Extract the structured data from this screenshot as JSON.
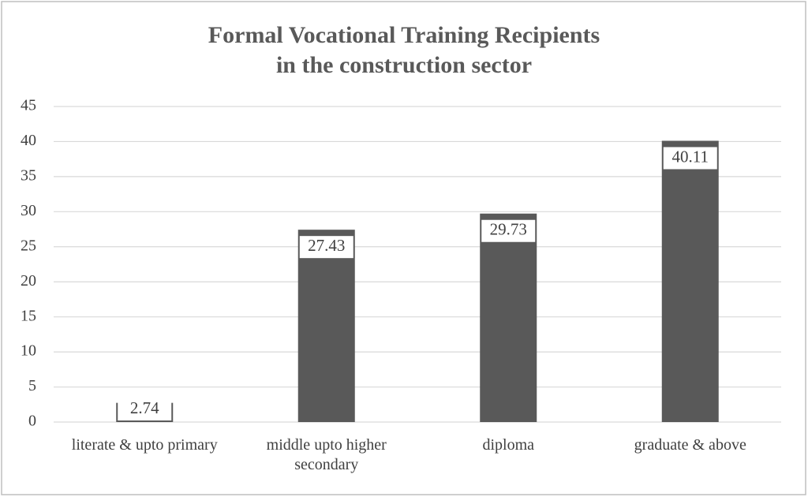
{
  "chart_data": {
    "type": "bar",
    "title": "Formal Vocational Training Recipients in the construction sector",
    "categories": [
      "literate & upto primary",
      "middle upto higher secondary",
      "diploma",
      "graduate & above"
    ],
    "values": [
      2.74,
      27.43,
      29.73,
      40.11
    ],
    "color": "#595959",
    "ylim": [
      0,
      45
    ],
    "yticks": [
      0,
      5,
      10,
      15,
      20,
      25,
      30,
      35,
      40,
      45
    ],
    "grid": true
  }
}
